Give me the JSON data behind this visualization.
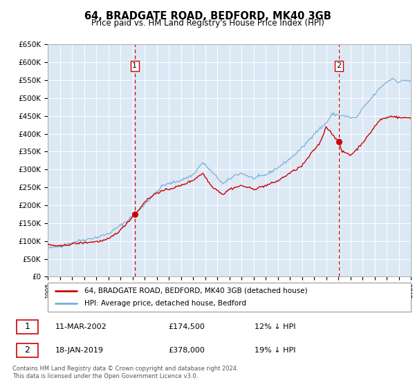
{
  "title": "64, BRADGATE ROAD, BEDFORD, MK40 3GB",
  "subtitle": "Price paid vs. HM Land Registry's House Price Index (HPI)",
  "legend_label_red": "64, BRADGATE ROAD, BEDFORD, MK40 3GB (detached house)",
  "legend_label_blue": "HPI: Average price, detached house, Bedford",
  "footnote": "Contains HM Land Registry data © Crown copyright and database right 2024.\nThis data is licensed under the Open Government Licence v3.0.",
  "transaction1_date": "11-MAR-2002",
  "transaction1_price": "£174,500",
  "transaction1_hpi": "12% ↓ HPI",
  "transaction2_date": "18-JAN-2019",
  "transaction2_price": "£378,000",
  "transaction2_hpi": "19% ↓ HPI",
  "ylim": [
    0,
    650000
  ],
  "yticks": [
    0,
    50000,
    100000,
    150000,
    200000,
    250000,
    300000,
    350000,
    400000,
    450000,
    500000,
    550000,
    600000,
    650000
  ],
  "plot_bg_color": "#dce9f5",
  "grid_color": "#ffffff",
  "red_line_color": "#cc0000",
  "blue_line_color": "#7aaed6",
  "vline_color": "#cc0000",
  "marker1_date_num": 2002.19,
  "marker1_value": 174500,
  "marker2_date_num": 2019.05,
  "marker2_value": 378000,
  "xstart": 1995,
  "xend": 2025,
  "label1_value": 590000,
  "label2_value": 590000,
  "hpi_waypoints_x": [
    1995.0,
    1996.0,
    1997.5,
    1999.0,
    2000.0,
    2001.5,
    2002.5,
    2003.5,
    2004.5,
    2005.0,
    2006.0,
    2007.0,
    2007.8,
    2008.5,
    2009.5,
    2010.5,
    2011.0,
    2012.0,
    2013.0,
    2014.0,
    2015.0,
    2016.0,
    2017.0,
    2018.0,
    2018.5,
    2019.5,
    2020.0,
    2020.5,
    2021.0,
    2021.5,
    2022.0,
    2022.5,
    2023.0,
    2023.5,
    2024.0,
    2024.5,
    2025.0
  ],
  "hpi_waypoints_y": [
    80000,
    85000,
    100000,
    110000,
    120000,
    155000,
    185000,
    220000,
    255000,
    260000,
    270000,
    285000,
    320000,
    295000,
    260000,
    285000,
    290000,
    275000,
    285000,
    305000,
    330000,
    360000,
    400000,
    430000,
    455000,
    450000,
    445000,
    445000,
    470000,
    490000,
    510000,
    530000,
    545000,
    555000,
    545000,
    550000,
    548000
  ],
  "red_waypoints_x": [
    1995.0,
    1996.0,
    1997.0,
    1998.0,
    1999.5,
    2000.0,
    2001.0,
    2002.19,
    2002.5,
    2003.0,
    2004.0,
    2005.0,
    2006.0,
    2007.0,
    2007.8,
    2008.5,
    2009.5,
    2010.0,
    2011.0,
    2012.0,
    2013.0,
    2014.0,
    2015.0,
    2016.0,
    2017.0,
    2017.5,
    2018.0,
    2019.05,
    2019.3,
    2019.8,
    2020.0,
    2020.5,
    2021.0,
    2021.5,
    2022.0,
    2022.5,
    2023.0,
    2023.5,
    2024.0,
    2024.5,
    2025.0
  ],
  "red_waypoints_y": [
    90000,
    85000,
    92000,
    95000,
    100000,
    105000,
    130000,
    174500,
    185000,
    210000,
    235000,
    245000,
    255000,
    270000,
    290000,
    255000,
    230000,
    245000,
    255000,
    245000,
    255000,
    268000,
    290000,
    310000,
    355000,
    375000,
    420000,
    378000,
    350000,
    345000,
    340000,
    355000,
    375000,
    395000,
    420000,
    440000,
    445000,
    450000,
    445000,
    445000,
    445000
  ]
}
